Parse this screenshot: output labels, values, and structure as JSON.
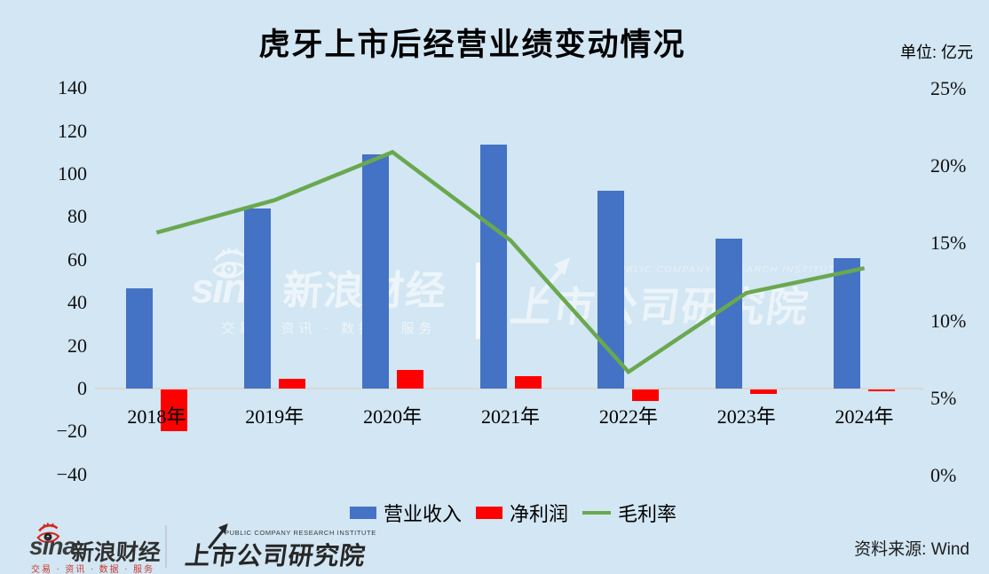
{
  "title": "虎牙上市后经营业绩变动情况",
  "unit_label": "单位: 亿元",
  "watermark": {
    "sina_latin": "sina",
    "sina_cn": "新浪财经",
    "sina_tagline": "交易 · 资讯 · 数据 · 服务",
    "pcri_en": "PUBLIC COMPANY RESEARCH INSTITUTE",
    "pcri_cn": "上市公司研究院"
  },
  "footer": {
    "sina_latin": "sina",
    "sina_cn": "新浪财经",
    "sina_tagline": "交易 · 资讯 · 数据 · 服务",
    "pcri_en": "PUBLIC COMPANY RESEARCH INSTITUTE",
    "pcri_cn": "上市公司研究院",
    "source_label": "资料来源: Wind"
  },
  "colors": {
    "background": "#d2e6f3",
    "revenue_bar": "#4472c4",
    "net_profit_bar": "#ff0000",
    "gross_margin_line": "#6aa84f"
  },
  "chart_data": {
    "type": "bar",
    "subtype": "bar+line combo, dual axis",
    "title": "虎牙上市后经营业绩变动情况",
    "categories": [
      "2018年",
      "2019年",
      "2020年",
      "2021年",
      "2022年",
      "2023年",
      "2024年"
    ],
    "series": [
      {
        "key": "revenue",
        "name": "营业收入",
        "type": "bar",
        "axis": "left",
        "unit": "亿元",
        "color": "#4472c4",
        "values": [
          46.6,
          83.8,
          109.1,
          113.5,
          92.2,
          69.9,
          60.8
        ]
      },
      {
        "key": "net_profit",
        "name": "净利润",
        "type": "bar",
        "axis": "left",
        "unit": "亿元",
        "color": "#ff0000",
        "values": [
          -19.4,
          4.7,
          8.8,
          5.9,
          -5.5,
          -2.0,
          -0.5
        ]
      },
      {
        "key": "gross_margin",
        "name": "毛利率",
        "type": "line",
        "axis": "right",
        "unit": "%",
        "color": "#6aa84f",
        "values": [
          15.7,
          17.8,
          20.9,
          15.2,
          6.7,
          11.8,
          13.4
        ]
      }
    ],
    "left_axis": {
      "min": -40,
      "max": 140,
      "step": 20,
      "ticks": [
        140,
        120,
        100,
        80,
        60,
        40,
        20,
        0,
        -20,
        -40
      ]
    },
    "right_axis": {
      "min": 0,
      "max": 25,
      "step": 5,
      "ticks": [
        "25%",
        "20%",
        "15%",
        "10%",
        "5%",
        "0%"
      ]
    },
    "legend_position": "bottom",
    "grid": false
  }
}
